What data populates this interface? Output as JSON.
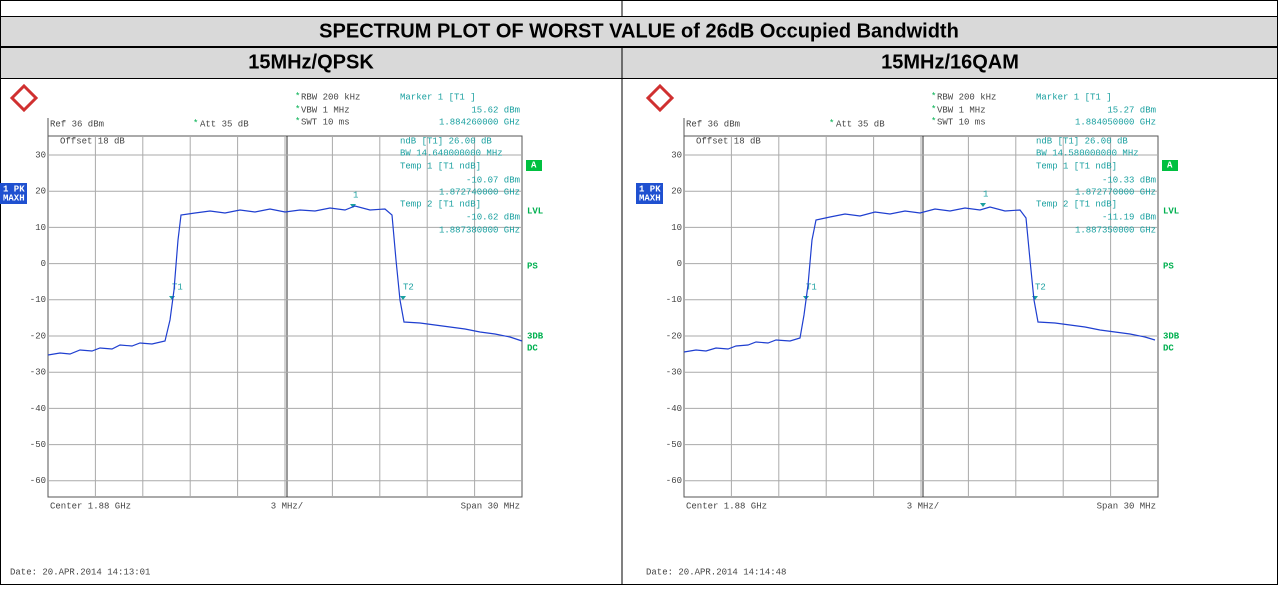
{
  "title": "SPECTRUM PLOT OF WORST VALUE of 26dB Occupied Bandwidth",
  "columns": [
    {
      "heading": "15MHz/QPSK",
      "date": "Date: 20.APR.2014 14:13:01",
      "plot": {
        "asterisk": "*",
        "rbw": "RBW 200 kHz",
        "vbw": "VBW 1 MHz",
        "swt": "SWT 10 ms",
        "ref": "Ref 36 dBm",
        "att": "Att 35 dB",
        "marker_title": "Marker 1 [T1 ]",
        "marker_level": "15.62 dBm",
        "marker_freq": "1.884260000 GHz",
        "offset": "Offset 18 dB",
        "ndb": "ndB [T1] 26.00 dB",
        "bw": "BW 14.640000000 MHz",
        "temp1_title": "Temp 1 [T1 ndB]",
        "temp1_level": "-10.07 dBm",
        "temp1_freq": "1.872740000 GHz",
        "temp2_title": "Temp 2 [T1 ndB]",
        "temp2_level": "-10.62 dBm",
        "temp2_freq": "1.887380000 GHz",
        "yticks": [
          "30",
          "20",
          "10",
          "0",
          "-10",
          "-20",
          "-30",
          "-40",
          "-50",
          "-60"
        ],
        "trace_label": [
          "1 PK",
          "MAXH"
        ],
        "side": [
          "A",
          "LVL",
          "PS",
          "3DB",
          "DC"
        ],
        "center": "Center 1.88 GHz",
        "division": "3 MHz/",
        "span": "Span 30 MHz",
        "markers": [
          "1",
          "T1",
          "T2"
        ]
      }
    },
    {
      "heading": "15MHz/16QAM",
      "date": "Date: 20.APR.2014 14:14:48",
      "plot": {
        "asterisk": "*",
        "rbw": "RBW 200 kHz",
        "vbw": "VBW 1 MHz",
        "swt": "SWT 10 ms",
        "ref": "Ref 36 dBm",
        "att": "Att 35 dB",
        "marker_title": "Marker 1 [T1 ]",
        "marker_level": "15.27 dBm",
        "marker_freq": "1.884050000 GHz",
        "offset": "Offset 18 dB",
        "ndb": "ndB [T1] 26.00 dB",
        "bw": "BW 14.580000000 MHz",
        "temp1_title": "Temp 1 [T1 ndB]",
        "temp1_level": "-10.33 dBm",
        "temp1_freq": "1.872770000 GHz",
        "temp2_title": "Temp 2 [T1 ndB]",
        "temp2_level": "-11.19 dBm",
        "temp2_freq": "1.887350000 GHz",
        "yticks": [
          "30",
          "20",
          "10",
          "0",
          "-10",
          "-20",
          "-30",
          "-40",
          "-50",
          "-60"
        ],
        "trace_label": [
          "1 PK",
          "MAXH"
        ],
        "side": [
          "A",
          "LVL",
          "PS",
          "3DB",
          "DC"
        ],
        "center": "Center 1.88 GHz",
        "division": "3 MHz/",
        "span": "Span 30 MHz",
        "markers": [
          "1",
          "T1",
          "T2"
        ]
      }
    }
  ]
}
